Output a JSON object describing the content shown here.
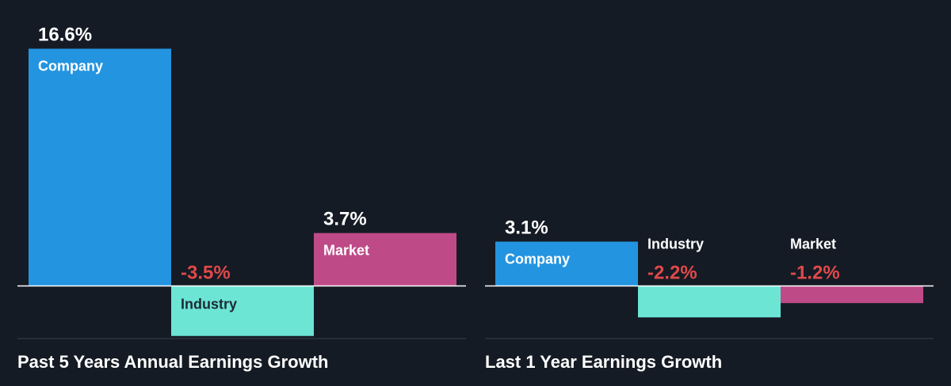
{
  "colors": {
    "background": "#151b24",
    "axis": "#ffffff",
    "divider": "#3a414c",
    "positive_text": "#ffffff",
    "negative_text": "#e0494a",
    "company": "#2394e0",
    "industry": "#6ce5d5",
    "market": "#be4b88"
  },
  "chart_data": [
    {
      "type": "bar",
      "title": "Past 5 Years Annual Earnings Growth",
      "categories": [
        "Company",
        "Industry",
        "Market"
      ],
      "values": [
        16.6,
        -3.5,
        3.7
      ],
      "value_labels": [
        "16.6%",
        "-3.5%",
        "3.7%"
      ],
      "unit": "%",
      "grid": false,
      "legend": "none"
    },
    {
      "type": "bar",
      "title": "Last 1 Year Earnings Growth",
      "categories": [
        "Company",
        "Industry",
        "Market"
      ],
      "values": [
        3.1,
        -2.2,
        -1.2
      ],
      "value_labels": [
        "3.1%",
        "-2.2%",
        "-1.2%"
      ],
      "unit": "%",
      "grid": false,
      "legend": "none"
    }
  ]
}
